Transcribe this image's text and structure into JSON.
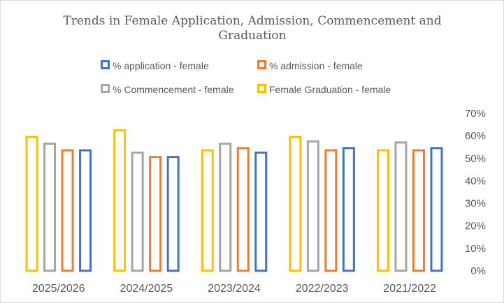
{
  "chart_data": {
    "type": "bar",
    "title": "Trends in Female Application, Admission, Commencement and Graduation",
    "title_lines": [
      "Trends in Female Application, Admission, Commencement and",
      "Graduation"
    ],
    "categories": [
      "2025/2026",
      "2024/2025",
      "2023/2024",
      "2022/2023",
      "2021/2022"
    ],
    "series": [
      {
        "name": "Female Graduation - female",
        "color": "#FFC000",
        "values": [
          0.6,
          0.63,
          0.54,
          0.6,
          0.54
        ]
      },
      {
        "name": "% Commencement - female",
        "color": "#A5A5A5",
        "values": [
          0.57,
          0.53,
          0.57,
          0.58,
          0.575
        ]
      },
      {
        "name": "% admission - female",
        "color": "#ED7D31",
        "values": [
          0.54,
          0.51,
          0.55,
          0.54,
          0.54
        ]
      },
      {
        "name": "% application - female",
        "color": "#4472C4",
        "values": [
          0.54,
          0.51,
          0.53,
          0.55,
          0.55
        ]
      }
    ],
    "legend_order": [
      3,
      2,
      1,
      0
    ],
    "bar_style": "outline",
    "ylim": [
      0,
      0.7
    ],
    "yticks": [
      "0%",
      "10%",
      "20%",
      "30%",
      "40%",
      "50%",
      "60%",
      "70%"
    ],
    "y_axis_side": "right",
    "grid": false,
    "legend_position": "top"
  }
}
